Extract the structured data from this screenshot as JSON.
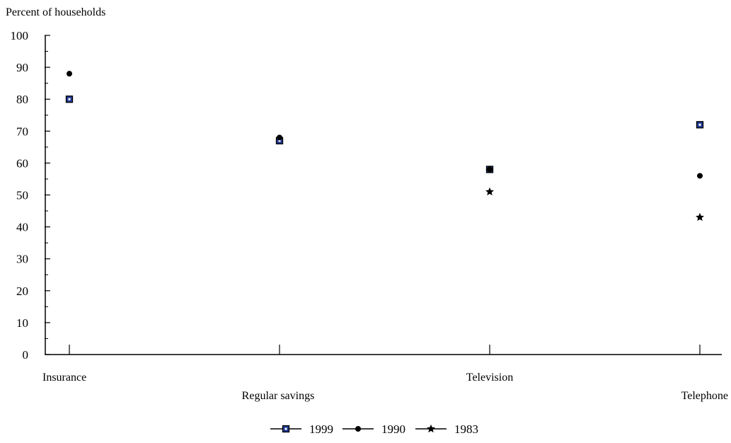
{
  "chart_data": {
    "type": "scatter",
    "title": "",
    "ylabel": "Percent of households",
    "xlabel": "",
    "categories": [
      "Insurance",
      "Regular savings",
      "Television",
      "Telephone"
    ],
    "ylim": [
      0,
      100
    ],
    "yticks": [
      0,
      10,
      20,
      30,
      40,
      50,
      60,
      70,
      80,
      90,
      100
    ],
    "grid": false,
    "legend_position": "bottom",
    "series": [
      {
        "name": "1999",
        "marker": "square",
        "color": "#1f3a93",
        "values": [
          80,
          67,
          58,
          72
        ]
      },
      {
        "name": "1990",
        "marker": "circle",
        "color": "#000000",
        "values": [
          88,
          68,
          58,
          56
        ]
      },
      {
        "name": "1983",
        "marker": "star",
        "color": "#000000",
        "values": [
          null,
          null,
          51,
          43
        ]
      }
    ]
  }
}
